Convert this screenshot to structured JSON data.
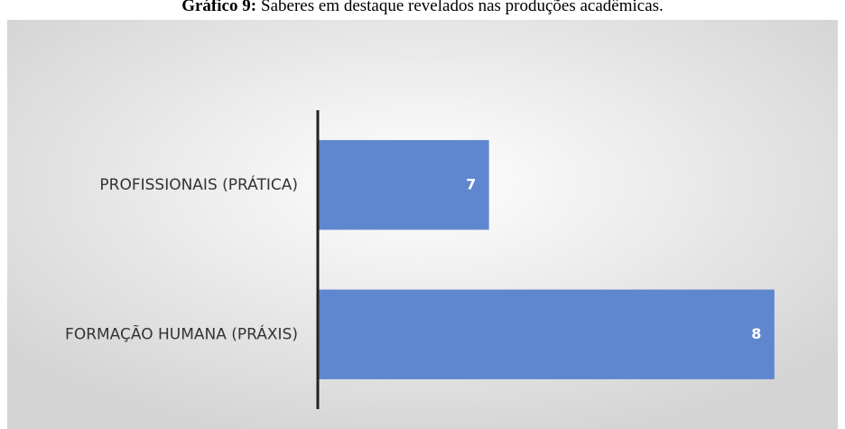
{
  "chart_data": {
    "type": "hbar",
    "title_label": "Gráfico 9:",
    "title": "Saberes em destaque revelados nas produções acadêmicas.",
    "categories": [
      "PROFISSIONAIS (PRÁTICA)",
      "FORMAÇÃO HUMANA (PRÁXIS)"
    ],
    "values": [
      7,
      8
    ],
    "color": "#5f87cf",
    "xlim": [
      6.4,
      8.2
    ]
  }
}
